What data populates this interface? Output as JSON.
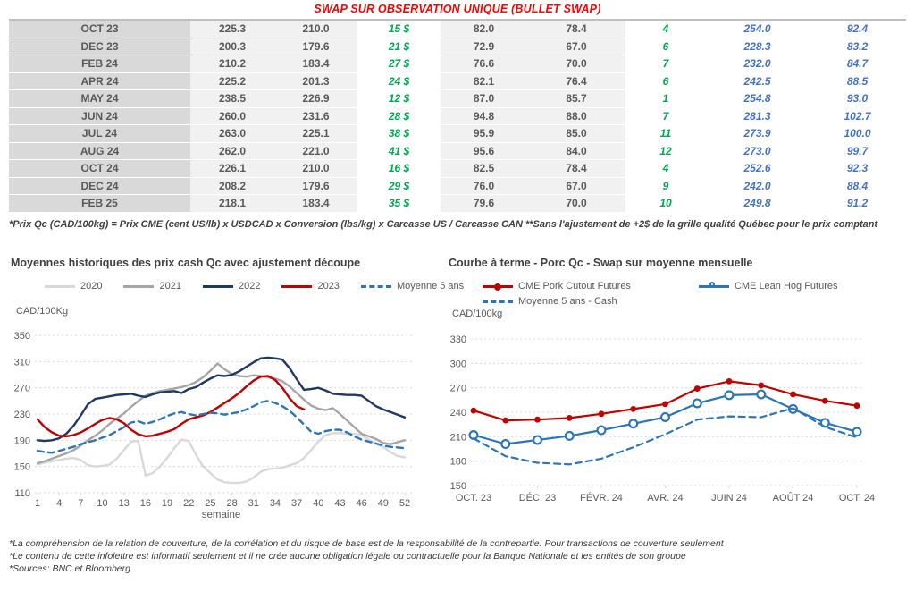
{
  "header": {
    "title": "SWAP SUR OBSERVATION UNIQUE (BULLET SWAP)"
  },
  "table": {
    "rows": [
      [
        "OCT 23",
        "225.3",
        "210.0",
        "15 $",
        "82.0",
        "78.4",
        "4",
        "254.0",
        "92.4"
      ],
      [
        "DEC 23",
        "200.3",
        "179.6",
        "21 $",
        "72.9",
        "67.0",
        "6",
        "228.3",
        "83.2"
      ],
      [
        "FEB 24",
        "210.2",
        "183.4",
        "27 $",
        "76.6",
        "70.0",
        "7",
        "232.0",
        "84.7"
      ],
      [
        "APR 24",
        "225.2",
        "201.3",
        "24 $",
        "82.1",
        "76.4",
        "6",
        "242.5",
        "88.5"
      ],
      [
        "MAY 24",
        "238.5",
        "226.9",
        "12 $",
        "87.0",
        "85.7",
        "1",
        "254.8",
        "93.0"
      ],
      [
        "JUN 24",
        "260.0",
        "231.6",
        "28 $",
        "94.8",
        "88.0",
        "7",
        "281.3",
        "102.7"
      ],
      [
        "JUL 24",
        "263.0",
        "225.1",
        "38 $",
        "95.9",
        "85.0",
        "11",
        "273.9",
        "100.0"
      ],
      [
        "AUG 24",
        "262.0",
        "221.0",
        "41 $",
        "95.6",
        "84.0",
        "12",
        "273.0",
        "99.7"
      ],
      [
        "OCT 24",
        "226.1",
        "210.0",
        "16 $",
        "82.5",
        "78.4",
        "4",
        "252.6",
        "92.3"
      ],
      [
        "DEC 24",
        "208.2",
        "179.6",
        "29 $",
        "76.0",
        "67.0",
        "9",
        "242.0",
        "88.4"
      ],
      [
        "FEB 25",
        "218.1",
        "183.4",
        "35 $",
        "79.6",
        "70.0",
        "10",
        "249.8",
        "91.2"
      ]
    ]
  },
  "table_footnote": "*Prix Qc (CAD/100kg) = Prix CME (cent US/lb) x USDCAD x Conversion (lbs/kg) x Carcasse US / Carcasse CAN **Sans l'ajustement de +2$ de la grille qualité Québec pour le prix comptant",
  "footnotes": [
    "*La compréhension de la relation de couverture, de la corrélation et du risque de base est de la responsabilité de la contrepartie. Pour transactions de couverture seulement",
    "*Le contenu de cette infolettre est informatif seulement et il ne crée aucune obligation légale ou contractuelle pour la Banque Nationale et les entités de son groupe",
    "*Sources: BNC et Bloomberg"
  ],
  "colors": {
    "title_red": "#FF0000",
    "green_value": "#00A651",
    "blue_value": "#4472C4",
    "grid": "#D9D9D9",
    "axis_text": "#595959"
  },
  "chart_data": [
    {
      "type": "line",
      "title": "Moyennes historiques des prix cash Qc avec ajustement découpe",
      "ylabel": "CAD/100Kg",
      "xlabel": "semaine",
      "ylim": [
        110,
        350
      ],
      "yticks": [
        110,
        150,
        190,
        230,
        270,
        310,
        350
      ],
      "xticks": [
        1,
        4,
        7,
        10,
        13,
        16,
        19,
        22,
        25,
        28,
        31,
        34,
        37,
        40,
        43,
        46,
        49,
        52
      ],
      "xlim": [
        1,
        52
      ],
      "grid": "horizontal-dashed",
      "legend_position": "top",
      "series": [
        {
          "name": "2020",
          "color": "#D9D9D9",
          "style": "solid",
          "marker": "none",
          "values": [
            153,
            156,
            158,
            160,
            162,
            163,
            160,
            152,
            150,
            151,
            153,
            162,
            175,
            188,
            189,
            136,
            140,
            150,
            163,
            178,
            191,
            189,
            168,
            150,
            140,
            130,
            126,
            125,
            125,
            127,
            133,
            142,
            146,
            147,
            148,
            152,
            155,
            163,
            175,
            188,
            198,
            201,
            201,
            200,
            200,
            198,
            191,
            185,
            180,
            172,
            166,
            164
          ]
        },
        {
          "name": "2021",
          "color": "#A6A6A6",
          "style": "solid",
          "marker": "none",
          "values": [
            155,
            158,
            162,
            166,
            170,
            175,
            182,
            190,
            197,
            205,
            215,
            223,
            231,
            241,
            250,
            258,
            262,
            265,
            267,
            269,
            271,
            274,
            279,
            286,
            296,
            307,
            298,
            291,
            288,
            287,
            289,
            288,
            286,
            284,
            280,
            272,
            262,
            252,
            243,
            238,
            236,
            239,
            230,
            220,
            210,
            200,
            196,
            192,
            186,
            184,
            187,
            190
          ]
        },
        {
          "name": "2022",
          "color": "#1F3864",
          "style": "solid",
          "marker": "none",
          "values": [
            190,
            189,
            190,
            193,
            200,
            212,
            228,
            245,
            253,
            255,
            257,
            259,
            260,
            261,
            258,
            256,
            260,
            263,
            264,
            265,
            262,
            268,
            271,
            278,
            284,
            289,
            288,
            290,
            295,
            302,
            309,
            315,
            316,
            315,
            313,
            300,
            283,
            267,
            268,
            270,
            266,
            261,
            260,
            259,
            259,
            258,
            250,
            242,
            237,
            233,
            229,
            225
          ]
        },
        {
          "name": "2023",
          "color": "#C00000",
          "style": "solid",
          "marker": "none",
          "values": [
            222,
            210,
            202,
            197,
            196,
            198,
            202,
            208,
            215,
            221,
            224,
            222,
            216,
            206,
            199,
            196,
            197,
            200,
            203,
            207,
            215,
            222,
            225,
            228,
            233,
            240,
            247,
            254,
            262,
            272,
            281,
            287,
            288,
            282,
            270,
            254,
            242,
            237
          ]
        },
        {
          "name": "Moyenne 5 ans",
          "color": "#2E75B6",
          "style": "dashed",
          "marker": "none",
          "values": [
            174,
            172,
            171,
            174,
            177,
            180,
            184,
            187,
            190,
            194,
            198,
            204,
            210,
            217,
            219,
            215,
            218,
            222,
            227,
            231,
            233,
            230,
            228,
            230,
            232,
            231,
            229,
            231,
            233,
            237,
            242,
            248,
            250,
            247,
            242,
            235,
            225,
            214,
            203,
            200,
            204,
            206,
            206,
            202,
            196,
            191,
            188,
            185,
            182,
            180,
            179,
            178
          ]
        }
      ]
    },
    {
      "type": "line",
      "title": "Courbe à terme - Porc Qc - Swap sur moyenne mensuelle",
      "ylabel": "CAD/100kg",
      "xlabel": "",
      "ylim": [
        150,
        330
      ],
      "yticks": [
        150,
        180,
        210,
        240,
        270,
        300,
        330
      ],
      "categories": [
        "OCT. 23",
        "NOV. 23",
        "DÉC. 23",
        "JANV. 24",
        "FÉVR. 24",
        "MARS 24",
        "AVR. 24",
        "MAI 24",
        "JUIN 24",
        "JUIL. 24",
        "AOÛT 24",
        "SEPT. 24",
        "OCT. 24"
      ],
      "xtick_labels": [
        "OCT. 23",
        "DÉC. 23",
        "FÉVR. 24",
        "AVR. 24",
        "JUIN 24",
        "AOÛT 24",
        "OCT. 24"
      ],
      "grid": "horizontal-dashed",
      "legend_position": "top",
      "series": [
        {
          "name": "CME Pork Cutout Futures",
          "color": "#C00000",
          "style": "solid",
          "marker": "filled-circle",
          "values": [
            242,
            230,
            231,
            233,
            238,
            244,
            250,
            269,
            278,
            273,
            262,
            254,
            248
          ]
        },
        {
          "name": "CME Lean Hog Futures",
          "color": "#2E75B6",
          "style": "solid",
          "marker": "open-circle",
          "values": [
            212,
            201,
            206,
            211,
            218,
            226,
            234,
            251,
            261,
            262,
            244,
            227,
            216
          ]
        },
        {
          "name": "Moyenne 5 ans - Cash",
          "color": "#2E75B6",
          "style": "dashed",
          "marker": "none",
          "values": [
            208,
            186,
            178,
            176,
            183,
            197,
            213,
            231,
            235,
            234,
            245,
            222,
            209
          ]
        }
      ]
    }
  ]
}
